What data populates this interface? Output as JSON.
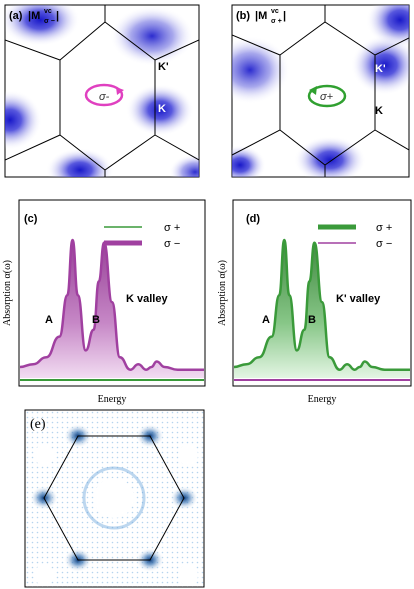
{
  "panel_a": {
    "tag": "(a)",
    "label_main": "|M",
    "label_sup": "vc",
    "label_sub": "σ −",
    "label_end": "|",
    "rotation": "σ-",
    "point_k_prime": "K'",
    "point_k": "K"
  },
  "panel_b": {
    "tag": "(b)",
    "label_main": "|M",
    "label_sup": "vc",
    "label_sub": "σ +",
    "label_end": "|",
    "rotation": "σ+",
    "point_k_prime": "K'",
    "point_k": "K"
  },
  "panel_c": {
    "tag": "(c)",
    "ylabel": "Absorption α(ω)",
    "xlabel": "Energy",
    "legend": [
      "σ +",
      "σ −"
    ],
    "valley": "K valley",
    "peak_a": "A",
    "peak_b": "B"
  },
  "panel_d": {
    "tag": "(d)",
    "ylabel": "Absorption α(ω)",
    "xlabel": "Energy",
    "legend": [
      "σ +",
      "σ −"
    ],
    "valley": "K' valley",
    "peak_a": "A",
    "peak_b": "B"
  },
  "panel_e": {
    "tag": "(e)"
  },
  "colors": {
    "dark_blue": "#1a1ad0",
    "sigma_minus": "#a040a0",
    "sigma_plus": "#3a9a3a",
    "arrow_minus": "#e040c0",
    "arrow_plus": "#30a030",
    "pattern_blue": "#0a4a8a"
  },
  "chart_data": [
    {
      "type": "line",
      "panel": "(c)",
      "xlabel": "Energy",
      "ylabel": "Absorption α(ω)",
      "series": [
        {
          "name": "σ −",
          "x": [
            0,
            5,
            10,
            15,
            18,
            20,
            22,
            25,
            28,
            30,
            32,
            35,
            38,
            42,
            45,
            48,
            50,
            52,
            55,
            60,
            65,
            70
          ],
          "values": [
            0.08,
            0.1,
            0.15,
            0.3,
            0.6,
            1.0,
            0.6,
            0.2,
            0.35,
            0.7,
            0.98,
            0.55,
            0.15,
            0.06,
            0.1,
            0.06,
            0.08,
            0.12,
            0.08,
            0.06,
            0.06,
            0.06
          ]
        },
        {
          "name": "σ +",
          "x": [
            0,
            70
          ],
          "values": [
            0.0,
            0.0
          ]
        }
      ]
    },
    {
      "type": "line",
      "panel": "(d)",
      "xlabel": "Energy",
      "ylabel": "Absorption α(ω)",
      "series": [
        {
          "name": "σ +",
          "x": [
            0,
            5,
            10,
            15,
            18,
            20,
            22,
            25,
            28,
            30,
            32,
            35,
            38,
            42,
            45,
            48,
            50,
            52,
            55,
            60,
            65,
            70
          ],
          "values": [
            0.08,
            0.1,
            0.15,
            0.3,
            0.6,
            1.0,
            0.6,
            0.2,
            0.35,
            0.7,
            0.98,
            0.55,
            0.15,
            0.06,
            0.1,
            0.06,
            0.08,
            0.12,
            0.08,
            0.06,
            0.06,
            0.06
          ]
        },
        {
          "name": "σ −",
          "x": [
            0,
            70
          ],
          "values": [
            0.0,
            0.0
          ]
        }
      ]
    }
  ]
}
